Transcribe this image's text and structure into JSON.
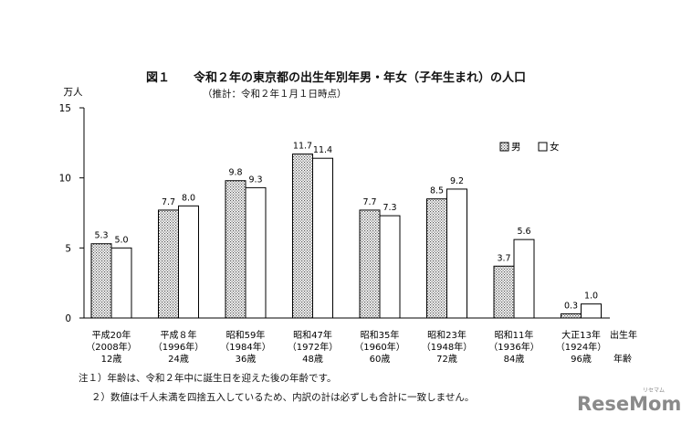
{
  "header": {
    "title": "図１　　令和２年の東京都の出生年別年男・年女（子年生まれ）の人口",
    "subtitle": "（推計：令和２年１月１日時点）"
  },
  "notes": [
    "注１）年齢は、令和２年中に誕生日を迎えた後の年齢です。",
    "２）数値は千人未満を四捨五入しているため、内訳の計は必ずしも合計に一致しません。"
  ],
  "logo": {
    "text": "ReseMom",
    "sub": "リセマム"
  },
  "chart_data": {
    "type": "bar",
    "unit_label": "万人",
    "ylim": [
      0,
      15
    ],
    "yticks": [
      0,
      5,
      10,
      15
    ],
    "grid": false,
    "legend_position": "top-right",
    "categories": [
      {
        "era": "平成20年",
        "year": "（2008年）",
        "age": "12歳"
      },
      {
        "era": "平成８年",
        "year": "（1996年）",
        "age": "24歳"
      },
      {
        "era": "昭和59年",
        "year": "（1984年）",
        "age": "36歳"
      },
      {
        "era": "昭和47年",
        "year": "（1972年）",
        "age": "48歳"
      },
      {
        "era": "昭和35年",
        "year": "（1960年）",
        "age": "60歳"
      },
      {
        "era": "昭和23年",
        "year": "（1948年）",
        "age": "72歳"
      },
      {
        "era": "昭和11年",
        "year": "（1936年）",
        "age": "84歳"
      },
      {
        "era": "大正13年",
        "year": "（1924年）",
        "age": "96歳"
      }
    ],
    "xlabel_birth": "出生年",
    "xlabel_age": "年齢",
    "series": [
      {
        "name": "男",
        "pattern": "dotted",
        "values": [
          5.3,
          7.7,
          9.8,
          11.7,
          7.7,
          8.5,
          3.7,
          0.3
        ],
        "labels": [
          "5.3",
          "7.7",
          "9.8",
          "11.7",
          "7.7",
          "8.5",
          "3.7",
          "0.3"
        ]
      },
      {
        "name": "女",
        "pattern": "white",
        "values": [
          5.0,
          8.0,
          9.3,
          11.4,
          7.3,
          9.2,
          5.6,
          1.0
        ],
        "labels": [
          "5.0",
          "8.0",
          "9.3",
          "11.4",
          "7.3",
          "9.2",
          "5.6",
          "1.0"
        ]
      }
    ]
  }
}
